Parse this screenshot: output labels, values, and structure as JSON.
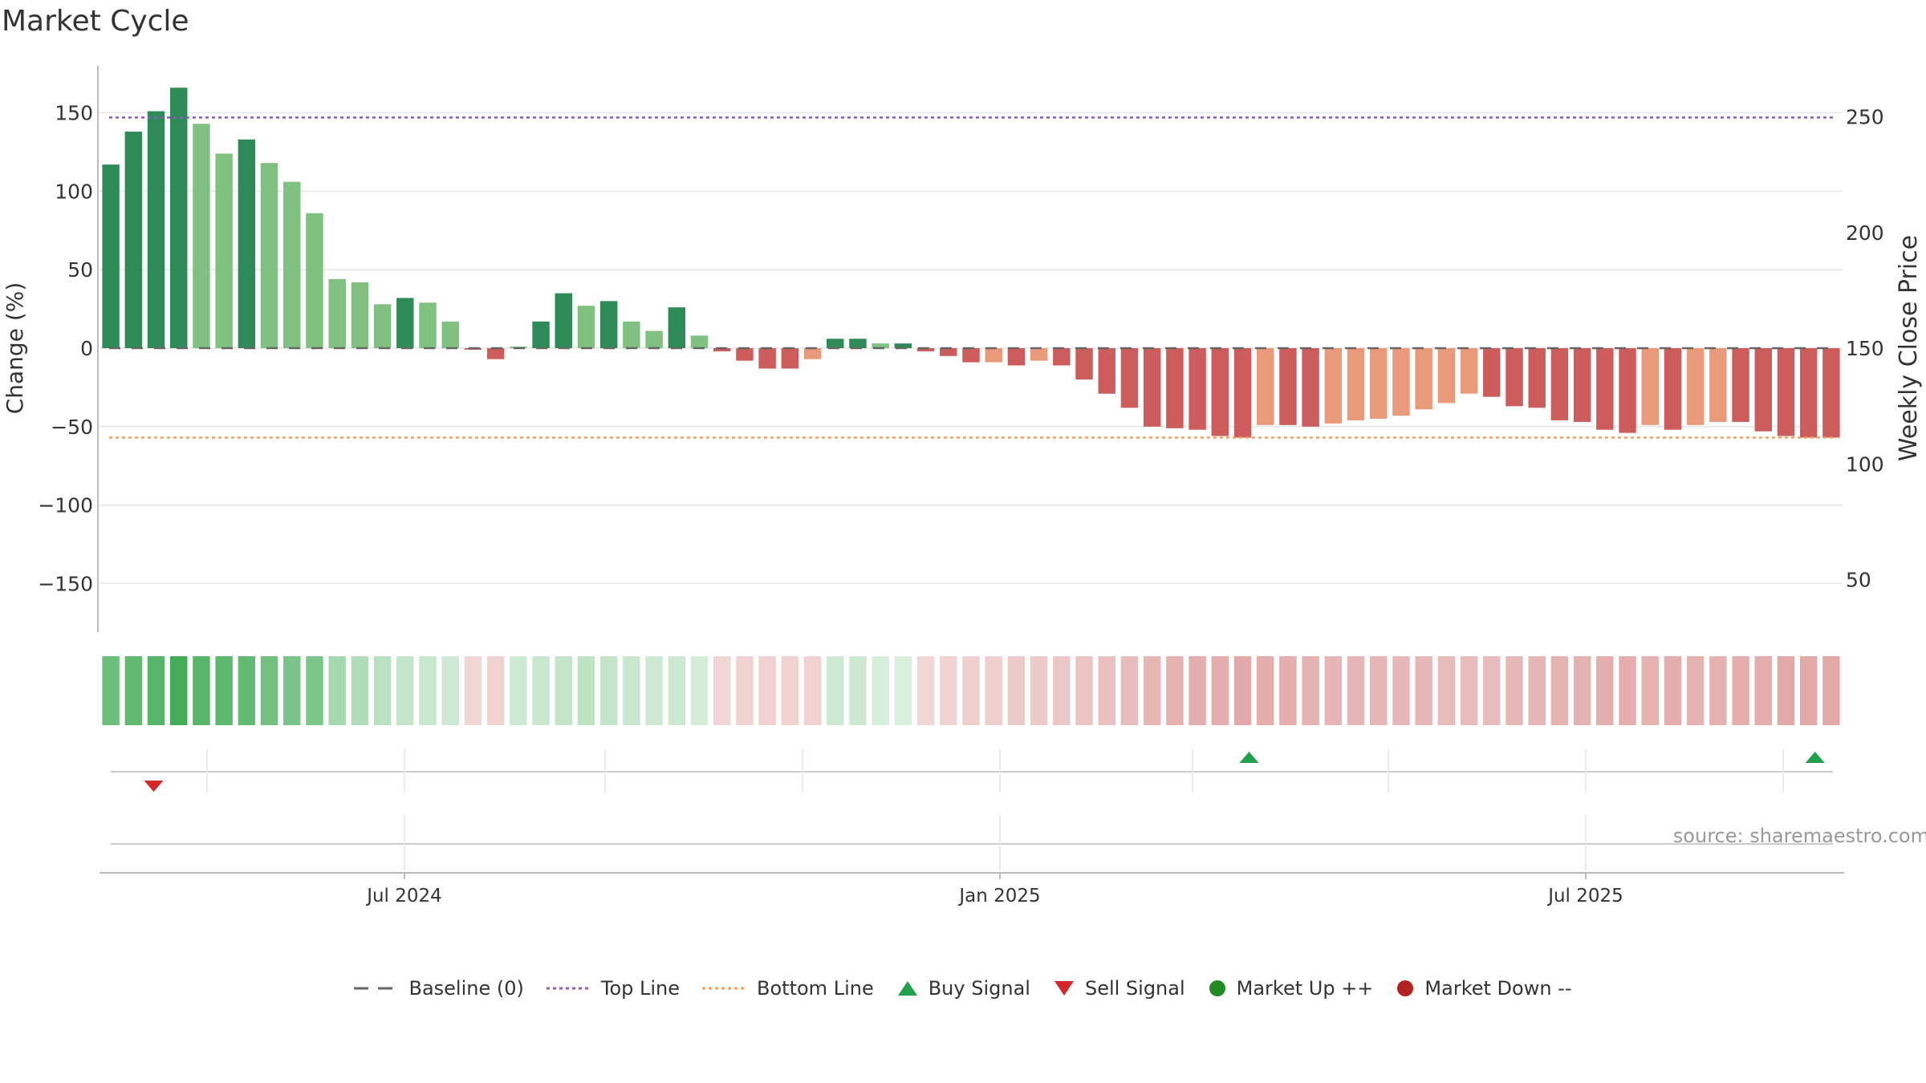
{
  "title": "Market Cycle",
  "source": "source: sharemaestro.com",
  "chart_data": {
    "type": "bar",
    "left_axis": {
      "label": "Change (%)",
      "ylim": [
        -180,
        180
      ],
      "ticks": [
        -150,
        -100,
        -50,
        0,
        50,
        100,
        150
      ]
    },
    "right_axis": {
      "label": "Weekly Close Price",
      "ylim": [
        25,
        275
      ],
      "ticks": [
        50,
        100,
        150,
        200,
        250
      ]
    },
    "x_ticks": [
      "Jul 2024",
      "Jan 2025",
      "Jul 2025"
    ],
    "grid": true,
    "reference_lines": [
      {
        "name": "Baseline (0)",
        "value": 0,
        "style": "dashed",
        "color": "#666666"
      },
      {
        "name": "Top Line",
        "value": 147,
        "style": "dotted",
        "color": "#8a5cc7"
      },
      {
        "name": "Bottom Line",
        "value": -57,
        "style": "dotted",
        "color": "#f0a060"
      }
    ],
    "values": [
      117,
      138,
      151,
      166,
      143,
      124,
      133,
      118,
      106,
      86,
      44,
      42,
      28,
      32,
      29,
      17,
      -1,
      -7,
      1,
      17,
      35,
      27,
      30,
      17,
      11,
      26,
      8,
      -2,
      -8,
      -13,
      -13,
      -7,
      6,
      6,
      3,
      3,
      -2,
      -5,
      -9,
      -9,
      -11,
      -8,
      -11,
      -20,
      -29,
      -38,
      -50,
      -51,
      -52,
      -56,
      -57,
      -49,
      -49,
      -50,
      -48,
      -46,
      -45,
      -43,
      -39,
      -35,
      -29,
      -31,
      -37,
      -38,
      -46,
      -47,
      -52,
      -54,
      -49,
      -52,
      -49,
      -47,
      -47,
      -53,
      -56,
      -57,
      -57
    ],
    "bar_shades": [
      "dark",
      "dark",
      "dark",
      "dark",
      "light",
      "light",
      "dark",
      "light",
      "light",
      "light",
      "light",
      "light",
      "light",
      "dark",
      "light",
      "light",
      "dark",
      "dark",
      "light",
      "dark",
      "dark",
      "light",
      "dark",
      "light",
      "light",
      "dark",
      "light",
      "dark",
      "dark",
      "dark",
      "dark",
      "light",
      "dark",
      "dark",
      "light",
      "dark",
      "dark",
      "dark",
      "dark",
      "light",
      "dark",
      "light",
      "dark",
      "dark",
      "dark",
      "dark",
      "dark",
      "dark",
      "dark",
      "dark",
      "dark",
      "light",
      "dark",
      "dark",
      "light",
      "light",
      "light",
      "light",
      "light",
      "light",
      "light",
      "dark",
      "dark",
      "dark",
      "dark",
      "dark",
      "dark",
      "dark",
      "light",
      "dark",
      "light",
      "light",
      "dark",
      "dark",
      "dark",
      "dark",
      "dark"
    ],
    "cycle_strip_intensity": [
      0.75,
      0.8,
      0.85,
      0.95,
      0.85,
      0.82,
      0.8,
      0.72,
      0.68,
      0.66,
      0.45,
      0.4,
      0.35,
      0.3,
      0.28,
      0.25,
      0.28,
      0.3,
      0.25,
      0.28,
      0.3,
      0.32,
      0.3,
      0.28,
      0.25,
      0.25,
      0.22,
      0.28,
      0.3,
      0.3,
      0.3,
      0.3,
      0.25,
      0.25,
      0.2,
      0.18,
      0.28,
      0.3,
      0.32,
      0.32,
      0.35,
      0.35,
      0.38,
      0.4,
      0.42,
      0.45,
      0.5,
      0.52,
      0.55,
      0.55,
      0.58,
      0.55,
      0.55,
      0.52,
      0.5,
      0.5,
      0.5,
      0.48,
      0.48,
      0.45,
      0.45,
      0.45,
      0.48,
      0.5,
      0.52,
      0.52,
      0.55,
      0.55,
      0.52,
      0.55,
      0.52,
      0.52,
      0.55,
      0.55,
      0.58,
      0.58,
      0.58
    ],
    "buy_signals": [
      50,
      75
    ],
    "sell_signals": [
      2
    ],
    "colors": {
      "pos_dark": "#2e8b57",
      "pos_light": "#80c080",
      "neg_dark": "#cd5c5c",
      "neg_light": "#e89a7a",
      "buy": "#22a04b",
      "sell": "#d62728",
      "market_up": "#228b22",
      "market_down": "#b22222"
    }
  },
  "legend": [
    {
      "label": "Baseline (0)",
      "icon": "dashed-line-icon",
      "color": "#666666"
    },
    {
      "label": "Top Line",
      "icon": "dotted-line-icon",
      "color": "#8a5cc7"
    },
    {
      "label": "Bottom Line",
      "icon": "dotted-line-icon",
      "color": "#f0a060"
    },
    {
      "label": "Buy Signal",
      "icon": "triangle-up-icon",
      "color": "#22a04b"
    },
    {
      "label": "Sell Signal",
      "icon": "triangle-down-icon",
      "color": "#d62728"
    },
    {
      "label": "Market Up ++",
      "icon": "circle-icon",
      "color": "#228b22"
    },
    {
      "label": "Market Down --",
      "icon": "circle-icon",
      "color": "#b22222"
    }
  ]
}
